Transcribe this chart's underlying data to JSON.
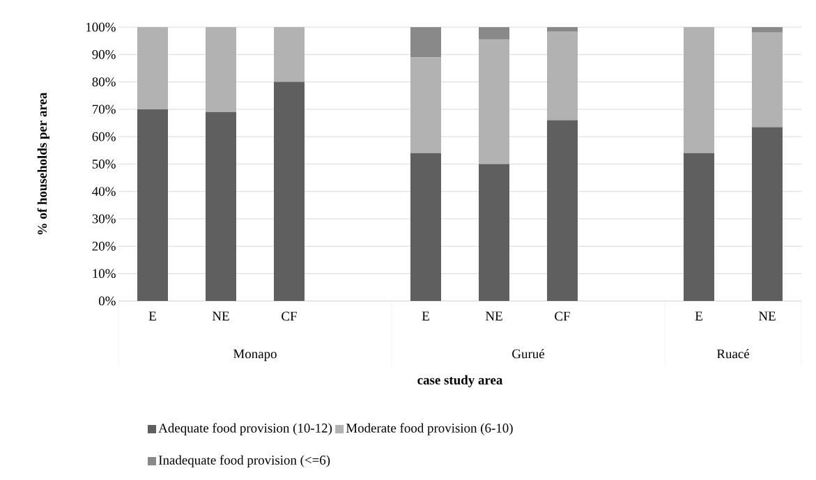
{
  "chart_data": {
    "type": "bar",
    "stacked": true,
    "xlabel": "case study area",
    "ylabel": "% of households per area",
    "categories": [
      "E",
      "NE",
      "CF",
      null,
      "E",
      "NE",
      "CF",
      null,
      "E",
      "NE"
    ],
    "series": [
      {
        "name": "Adequate  food provision (10-12)",
        "color": "#5f5f5f",
        "values": [
          70,
          69,
          80,
          null,
          54,
          50,
          66,
          null,
          54,
          63.5
        ]
      },
      {
        "name": "Moderate food provision (6-10)",
        "color": "#b2b2b2",
        "values": [
          30,
          31,
          20,
          null,
          35,
          45.5,
          32.5,
          null,
          46,
          34.5
        ]
      },
      {
        "name": "Inadequate food provision (<=6)",
        "color": "#898989",
        "values": [
          0,
          0,
          0,
          null,
          11,
          4.5,
          1.5,
          null,
          0,
          2
        ]
      }
    ],
    "annotations": [
      "Monapo",
      "Gurué",
      "Ruacé"
    ],
    "ylim": [
      0,
      100
    ],
    "yticks": [
      {
        "value": 0,
        "label": "0%"
      },
      {
        "value": 10,
        "label": "10%"
      },
      {
        "value": 20,
        "label": "20%"
      },
      {
        "value": 30,
        "label": "30%"
      },
      {
        "value": 40,
        "label": "40%"
      },
      {
        "value": 50,
        "label": "50%"
      },
      {
        "value": 60,
        "label": "60%"
      },
      {
        "value": 70,
        "label": "70%"
      },
      {
        "value": 80,
        "label": "80%"
      },
      {
        "value": 90,
        "label": "90%"
      },
      {
        "value": 100,
        "label": "100%"
      }
    ],
    "grid": "y",
    "legend": "bottom"
  }
}
